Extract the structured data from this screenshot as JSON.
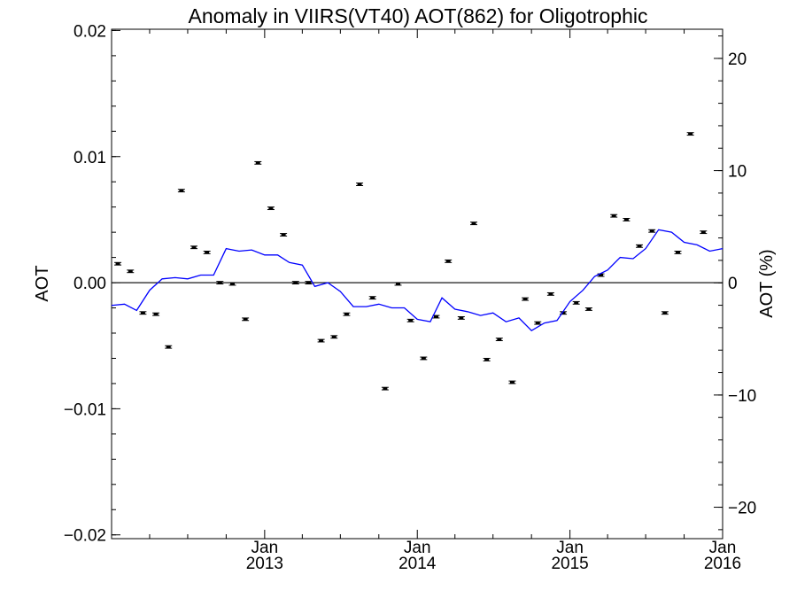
{
  "chart_data": {
    "type": "line",
    "title": "Anomaly in VIIRS(VT40) AOT(862) for Oligotrophic",
    "ylabel_left": "AOT",
    "ylabel_right": "AOT (%)",
    "x_range": [
      "2012-01-01",
      "2016-01-01"
    ],
    "ylim_left": [
      -0.0203,
      0.0201
    ],
    "ylim_right": [
      -22.8,
      22.6
    ],
    "yticks_left": [
      {
        "value": 0.02,
        "label": "0.02"
      },
      {
        "value": 0.01,
        "label": "0.01"
      },
      {
        "value": 0.0,
        "label": "0.00"
      },
      {
        "value": -0.01,
        "label": "−0.01"
      },
      {
        "value": -0.02,
        "label": "−0.02"
      }
    ],
    "yticks_right": [
      {
        "value": 20,
        "label": "20"
      },
      {
        "value": 10,
        "label": "10"
      },
      {
        "value": 0,
        "label": "0"
      },
      {
        "value": -10,
        "label": "−10"
      },
      {
        "value": -20,
        "label": "−20"
      }
    ],
    "xticks": [
      {
        "date": "2013-01-01",
        "month": "Jan",
        "year": "2013"
      },
      {
        "date": "2014-01-01",
        "month": "Jan",
        "year": "2014"
      },
      {
        "date": "2015-01-01",
        "month": "Jan",
        "year": "2015"
      },
      {
        "date": "2016-01-01",
        "month": "Jan",
        "year": "2016"
      }
    ],
    "zero_line": 0,
    "series": [
      {
        "kind": "line",
        "color": "#0000ff",
        "axis": "left",
        "points": [
          [
            "2012-01-01",
            -0.0018
          ],
          [
            "2012-02-01",
            -0.0017
          ],
          [
            "2012-03-01",
            -0.0022
          ],
          [
            "2012-04-01",
            -0.0006
          ],
          [
            "2012-05-01",
            0.0003
          ],
          [
            "2012-06-01",
            0.0004
          ],
          [
            "2012-07-01",
            0.0003
          ],
          [
            "2012-08-01",
            0.0006
          ],
          [
            "2012-09-01",
            0.0006
          ],
          [
            "2012-10-01",
            0.0027
          ],
          [
            "2012-11-01",
            0.0025
          ],
          [
            "2012-12-01",
            0.0026
          ],
          [
            "2013-01-01",
            0.0022
          ],
          [
            "2013-02-01",
            0.0022
          ],
          [
            "2013-03-01",
            0.0016
          ],
          [
            "2013-04-01",
            0.0014
          ],
          [
            "2013-05-01",
            -0.0003
          ],
          [
            "2013-06-01",
            0.0
          ],
          [
            "2013-07-01",
            -0.0007
          ],
          [
            "2013-08-01",
            -0.0019
          ],
          [
            "2013-09-01",
            -0.0019
          ],
          [
            "2013-10-01",
            -0.0017
          ],
          [
            "2013-11-01",
            -0.002
          ],
          [
            "2013-12-01",
            -0.002
          ],
          [
            "2014-01-01",
            -0.0029
          ],
          [
            "2014-02-01",
            -0.0031
          ],
          [
            "2014-03-01",
            -0.0012
          ],
          [
            "2014-04-01",
            -0.0021
          ],
          [
            "2014-05-01",
            -0.0023
          ],
          [
            "2014-06-01",
            -0.0026
          ],
          [
            "2014-07-01",
            -0.0024
          ],
          [
            "2014-08-01",
            -0.0031
          ],
          [
            "2014-09-01",
            -0.0028
          ],
          [
            "2014-10-01",
            -0.0038
          ],
          [
            "2014-11-01",
            -0.0032
          ],
          [
            "2014-12-01",
            -0.003
          ],
          [
            "2015-01-01",
            -0.0015
          ],
          [
            "2015-02-01",
            -0.0006
          ],
          [
            "2015-03-01",
            0.0005
          ],
          [
            "2015-04-01",
            0.001
          ],
          [
            "2015-05-01",
            0.002
          ],
          [
            "2015-06-01",
            0.0019
          ],
          [
            "2015-07-01",
            0.0027
          ],
          [
            "2015-08-01",
            0.0042
          ],
          [
            "2015-09-01",
            0.004
          ],
          [
            "2015-10-01",
            0.0032
          ],
          [
            "2015-11-01",
            0.003
          ],
          [
            "2015-12-01",
            0.0025
          ],
          [
            "2016-01-01",
            0.0027
          ]
        ]
      },
      {
        "kind": "points_with_error_bars",
        "color": "#000000",
        "axis": "left",
        "error": 0.0001,
        "points": [
          [
            "2012-01-16",
            0.0015
          ],
          [
            "2012-02-15",
            0.0009
          ],
          [
            "2012-03-16",
            -0.0024
          ],
          [
            "2012-04-16",
            -0.0025
          ],
          [
            "2012-05-16",
            -0.0051
          ],
          [
            "2012-06-16",
            0.0073
          ],
          [
            "2012-07-16",
            0.0028
          ],
          [
            "2012-08-16",
            0.0024
          ],
          [
            "2012-09-16",
            0.0
          ],
          [
            "2012-10-16",
            -0.0001
          ],
          [
            "2012-11-16",
            -0.0029
          ],
          [
            "2012-12-16",
            0.0095
          ],
          [
            "2013-01-16",
            0.0059
          ],
          [
            "2013-02-15",
            0.0038
          ],
          [
            "2013-03-16",
            0.0
          ],
          [
            "2013-04-16",
            0.0
          ],
          [
            "2013-05-16",
            -0.0046
          ],
          [
            "2013-06-16",
            -0.0043
          ],
          [
            "2013-07-16",
            -0.0025
          ],
          [
            "2013-08-16",
            0.0078
          ],
          [
            "2013-09-16",
            -0.0012
          ],
          [
            "2013-10-16",
            -0.0084
          ],
          [
            "2013-11-16",
            -0.0001
          ],
          [
            "2013-12-16",
            -0.003
          ],
          [
            "2014-01-16",
            -0.006
          ],
          [
            "2014-02-15",
            -0.0027
          ],
          [
            "2014-03-16",
            0.0017
          ],
          [
            "2014-04-16",
            -0.0028
          ],
          [
            "2014-05-16",
            0.0047
          ],
          [
            "2014-06-16",
            -0.0061
          ],
          [
            "2014-07-16",
            -0.0045
          ],
          [
            "2014-08-16",
            -0.0079
          ],
          [
            "2014-09-16",
            -0.0013
          ],
          [
            "2014-10-16",
            -0.0032
          ],
          [
            "2014-11-16",
            -0.0009
          ],
          [
            "2014-12-16",
            -0.0024
          ],
          [
            "2015-01-16",
            -0.0016
          ],
          [
            "2015-02-15",
            -0.0021
          ],
          [
            "2015-03-16",
            0.0006
          ],
          [
            "2015-04-16",
            0.0053
          ],
          [
            "2015-05-16",
            0.005
          ],
          [
            "2015-06-16",
            0.0029
          ],
          [
            "2015-07-16",
            0.0041
          ],
          [
            "2015-08-16",
            -0.0024
          ],
          [
            "2015-09-16",
            0.0024
          ],
          [
            "2015-10-16",
            0.0118
          ],
          [
            "2015-11-16",
            0.004
          ]
        ]
      }
    ]
  }
}
